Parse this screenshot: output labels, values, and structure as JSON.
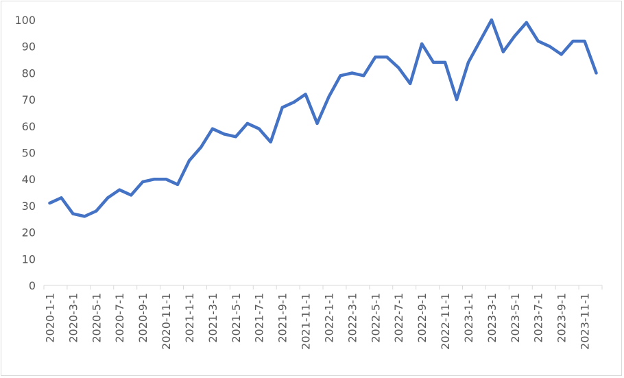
{
  "chart_data": {
    "type": "line",
    "title": "",
    "xlabel": "",
    "ylabel": "",
    "ylim": [
      0,
      100
    ],
    "yticks": [
      0,
      10,
      20,
      30,
      40,
      50,
      60,
      70,
      80,
      90,
      100
    ],
    "grid": false,
    "legend": "none",
    "line_color": "#4472C4",
    "x": [
      "2020-1",
      "2020-2",
      "2020-3",
      "2020-4",
      "2020-5",
      "2020-6",
      "2020-7",
      "2020-8",
      "2020-9",
      "2020-10",
      "2020-11",
      "2020-12",
      "2021-1",
      "2021-2",
      "2021-3",
      "2021-4",
      "2021-5",
      "2021-6",
      "2021-7",
      "2021-8",
      "2021-9",
      "2021-10",
      "2021-11",
      "2021-12",
      "2022-1",
      "2022-2",
      "2022-3",
      "2022-4",
      "2022-5",
      "2022-6",
      "2022-7",
      "2022-8",
      "2022-9",
      "2022-10",
      "2022-11",
      "2022-12",
      "2023-1",
      "2023-2",
      "2023-3",
      "2023-4",
      "2023-5",
      "2023-6",
      "2023-7",
      "2023-8",
      "2023-9",
      "2023-10",
      "2023-11",
      "2023-12"
    ],
    "x_tick_labels": [
      "2020-1-1",
      "2020-3-1",
      "2020-5-1",
      "2020-7-1",
      "2020-9-1",
      "2020-11-1",
      "2021-1-1",
      "2021-3-1",
      "2021-5-1",
      "2021-7-1",
      "2021-9-1",
      "2021-11-1",
      "2022-1-1",
      "2022-3-1",
      "2022-5-1",
      "2022-7-1",
      "2022-9-1",
      "2022-11-1",
      "2023-1-1",
      "2023-3-1",
      "2023-5-1",
      "2023-7-1",
      "2023-9-1",
      "2023-11-1"
    ],
    "series": [
      {
        "values": [
          31,
          33,
          27,
          26,
          28,
          33,
          36,
          34,
          39,
          40,
          40,
          38,
          47,
          52,
          59,
          57,
          56,
          61,
          59,
          54,
          67,
          69,
          72,
          61,
          71,
          79,
          80,
          79,
          86,
          86,
          82,
          76,
          91,
          84,
          84,
          70,
          84,
          92,
          100,
          88,
          94,
          99,
          92,
          90,
          87,
          92,
          92,
          80
        ]
      }
    ]
  }
}
